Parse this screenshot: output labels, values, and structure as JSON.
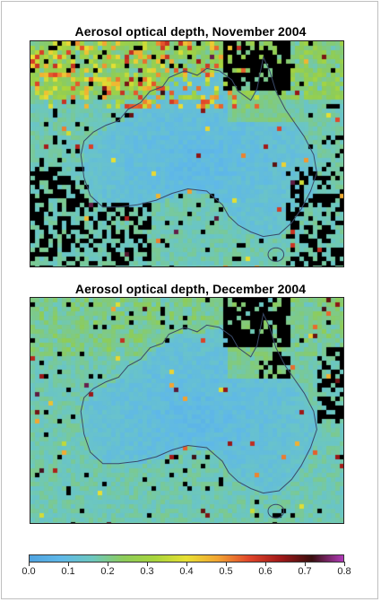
{
  "panels": [
    {
      "id": "nov",
      "title": "Aerosol optical depth, November 2004"
    },
    {
      "id": "dec",
      "title": "Aerosol optical depth, December 2004"
    }
  ],
  "colorbar": {
    "min": 0.0,
    "max": 0.8,
    "tick_labels": [
      "0.0",
      "0.1",
      "0.2",
      "0.3",
      "0.4",
      "0.5",
      "0.6",
      "0.7",
      "0.8"
    ],
    "colors": [
      "#4fa3e0",
      "#5fb8e8",
      "#6cc7bf",
      "#8dcc5a",
      "#a8d53c",
      "#e8e033",
      "#f2a432",
      "#e0452a",
      "#a01818",
      "#3a0f0f",
      "#b03ab8"
    ]
  },
  "colors": {
    "no_data": "#000000",
    "coastline": "#3a4a6a"
  }
}
